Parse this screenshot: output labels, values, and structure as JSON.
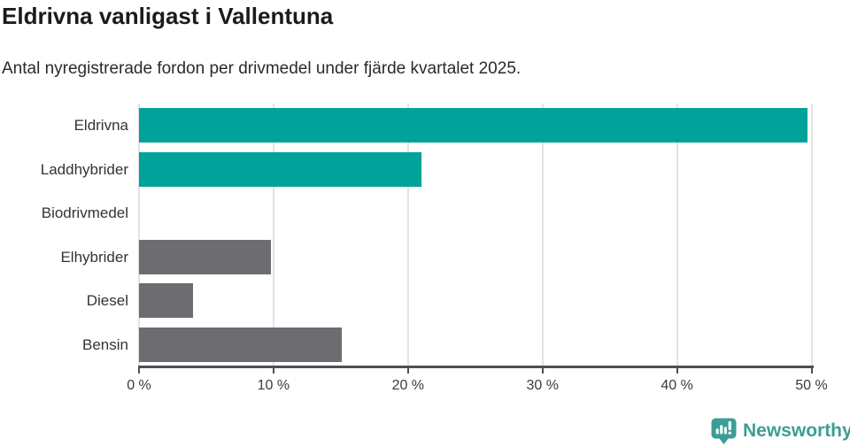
{
  "header": {
    "title": "Eldrivna vanligast i Vallentuna",
    "subtitle": "Antal nyregistrerade fordon per drivmedel under fjärde kvartalet 2025."
  },
  "chart_data": {
    "type": "bar",
    "orientation": "horizontal",
    "title": "Eldrivna vanligast i Vallentuna",
    "subtitle": "Antal nyregistrerade fordon per drivmedel under fjärde kvartalet 2025.",
    "categories": [
      "Eldrivna",
      "Laddhybrider",
      "Biodrivmedel",
      "Elhybrider",
      "Diesel",
      "Bensin"
    ],
    "values": [
      49.7,
      21.0,
      0.0,
      9.8,
      4.0,
      15.1
    ],
    "unit": "%",
    "bar_colors": [
      "#00a29a",
      "#00a29a",
      "#6c6c71",
      "#6c6c71",
      "#6c6c71",
      "#6c6c71"
    ],
    "xlabel": "",
    "ylabel": "",
    "xlim": [
      0,
      50
    ],
    "x_ticks": [
      0,
      10,
      20,
      30,
      40,
      50
    ],
    "x_tick_labels": [
      "0 %",
      "10 %",
      "20 %",
      "30 %",
      "40 %",
      "50 %"
    ],
    "grid": "vertical-gridlines",
    "legend": "none"
  },
  "colors": {
    "accent_teal": "#00a29a",
    "neutral_gray": "#6c6c71",
    "logo_teal": "#3b9e96",
    "axis": "#4f4f4f",
    "gridline": "#e3e3e3"
  },
  "logo": {
    "text": "Newsworthy",
    "icon": "bar-chart-speech-bubble-icon"
  }
}
